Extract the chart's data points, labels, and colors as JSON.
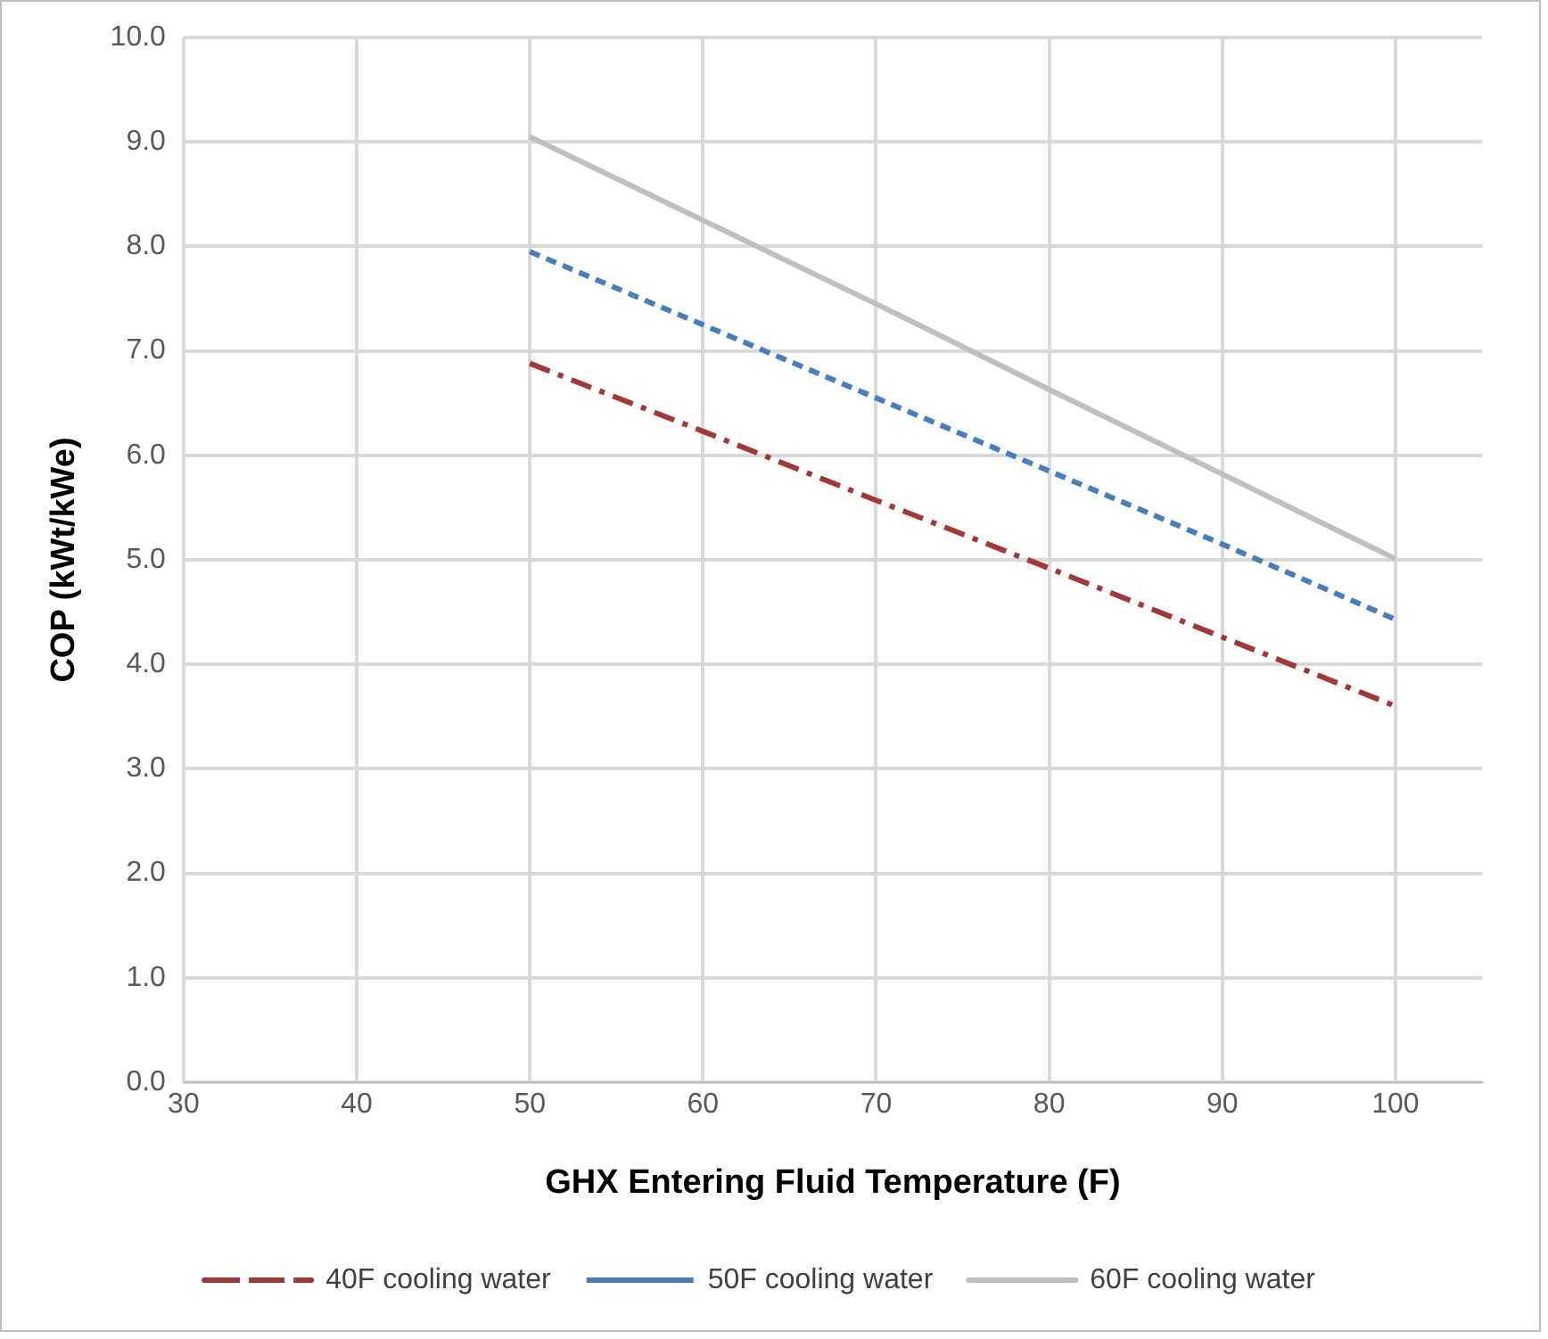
{
  "chart_data": {
    "type": "line",
    "xlabel": "GHX Entering Fluid Temperature (F)",
    "ylabel": "COP (kWt/kWe)",
    "x": [
      50,
      60,
      70,
      80,
      90,
      100
    ],
    "series": [
      {
        "name": "40F cooling water",
        "color": "#a0393a",
        "line_style": "dashdot",
        "values": [
          6.88,
          6.23,
          5.57,
          4.92,
          4.26,
          3.6
        ]
      },
      {
        "name": "50F cooling water",
        "color": "#4a7ebb",
        "line_style": "dashed",
        "values": [
          7.95,
          7.25,
          6.55,
          5.85,
          5.15,
          4.43
        ]
      },
      {
        "name": "60F cooling water",
        "color": "#bfbfbf",
        "line_style": "solid",
        "values": [
          9.05,
          8.25,
          7.45,
          6.63,
          5.82,
          5.01
        ]
      }
    ],
    "xlim": [
      30,
      105
    ],
    "xticks": [
      30,
      40,
      50,
      60,
      70,
      80,
      90,
      100
    ],
    "ylim": [
      0,
      10
    ],
    "yticks": [
      {
        "value": 0,
        "label": "0.0"
      },
      {
        "value": 1,
        "label": "1.0"
      },
      {
        "value": 2,
        "label": "2.0"
      },
      {
        "value": 3,
        "label": "3.0"
      },
      {
        "value": 4,
        "label": "4.0"
      },
      {
        "value": 5,
        "label": "5.0"
      },
      {
        "value": 6,
        "label": "6.0"
      },
      {
        "value": 7,
        "label": "7.0"
      },
      {
        "value": 8,
        "label": "8.0"
      },
      {
        "value": 9,
        "label": "9.0"
      },
      {
        "value": 10,
        "label": "10.0"
      }
    ],
    "grid": true,
    "legend": "bottom",
    "marker": "none"
  }
}
